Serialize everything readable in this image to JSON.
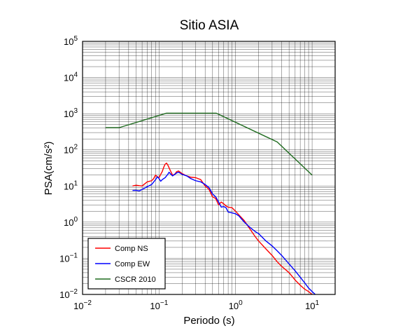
{
  "chart_data": {
    "type": "line",
    "title": "Sitio ASIA",
    "xlabel": "Periodo (s)",
    "ylabel": "PSA(cm/s²)",
    "xscale": "log",
    "yscale": "log",
    "xlim": [
      0.01,
      20
    ],
    "ylim": [
      0.01,
      100000
    ],
    "x_ticks": [
      {
        "base": "10",
        "exp": "−2"
      },
      {
        "base": "10",
        "exp": "−1"
      },
      {
        "base": "10",
        "exp": "0"
      },
      {
        "base": "10",
        "exp": "1"
      }
    ],
    "y_ticks": [
      {
        "base": "10",
        "exp": "−2"
      },
      {
        "base": "10",
        "exp": "−1"
      },
      {
        "base": "10",
        "exp": "0"
      },
      {
        "base": "10",
        "exp": "1"
      },
      {
        "base": "10",
        "exp": "2"
      },
      {
        "base": "10",
        "exp": "3"
      },
      {
        "base": "10",
        "exp": "4"
      },
      {
        "base": "10",
        "exp": "5"
      }
    ],
    "grid": true,
    "legend_position": "bottom-left",
    "series": [
      {
        "name": "Comp NS",
        "color": "#ff0000",
        "points": [
          [
            0.045,
            10.0
          ],
          [
            0.05,
            10.5
          ],
          [
            0.055,
            10.2
          ],
          [
            0.06,
            10.0
          ],
          [
            0.065,
            11.5
          ],
          [
            0.07,
            13.0
          ],
          [
            0.075,
            13.5
          ],
          [
            0.08,
            14.0
          ],
          [
            0.085,
            16.0
          ],
          [
            0.09,
            20.0
          ],
          [
            0.095,
            18.0
          ],
          [
            0.1,
            17.0
          ],
          [
            0.105,
            21.0
          ],
          [
            0.11,
            25.0
          ],
          [
            0.115,
            33.0
          ],
          [
            0.12,
            40.0
          ],
          [
            0.125,
            43.0
          ],
          [
            0.13,
            38.0
          ],
          [
            0.14,
            27.0
          ],
          [
            0.15,
            20.0
          ],
          [
            0.16,
            21.0
          ],
          [
            0.17,
            25.0
          ],
          [
            0.18,
            26.0
          ],
          [
            0.2,
            22.0
          ],
          [
            0.23,
            19.0
          ],
          [
            0.26,
            17.5
          ],
          [
            0.3,
            17.0
          ],
          [
            0.35,
            15.0
          ],
          [
            0.4,
            10.0
          ],
          [
            0.45,
            8.0
          ],
          [
            0.5,
            5.0
          ],
          [
            0.55,
            4.5
          ],
          [
            0.6,
            3.0
          ],
          [
            0.65,
            3.6
          ],
          [
            0.7,
            3.2
          ],
          [
            0.75,
            2.8
          ],
          [
            0.8,
            2.6
          ],
          [
            0.9,
            2.5
          ],
          [
            1.0,
            2.0
          ],
          [
            1.1,
            1.6
          ],
          [
            1.3,
            1.1
          ],
          [
            1.5,
            0.7
          ],
          [
            1.8,
            0.4
          ],
          [
            2.0,
            0.3
          ],
          [
            2.5,
            0.18
          ],
          [
            3.0,
            0.12
          ],
          [
            3.5,
            0.08
          ],
          [
            4.0,
            0.06
          ],
          [
            5.0,
            0.04
          ],
          [
            6.0,
            0.025
          ],
          [
            7.0,
            0.018
          ],
          [
            8.0,
            0.014
          ],
          [
            9.0,
            0.012
          ],
          [
            10.0,
            0.01
          ]
        ]
      },
      {
        "name": "Comp EW",
        "color": "#0000ff",
        "points": [
          [
            0.045,
            7.5
          ],
          [
            0.05,
            7.6
          ],
          [
            0.055,
            7.3
          ],
          [
            0.06,
            8.0
          ],
          [
            0.07,
            9.5
          ],
          [
            0.08,
            11.0
          ],
          [
            0.09,
            15.0
          ],
          [
            0.095,
            18.0
          ],
          [
            0.1,
            16.0
          ],
          [
            0.105,
            13.5
          ],
          [
            0.11,
            15.0
          ],
          [
            0.12,
            17.0
          ],
          [
            0.13,
            21.0
          ],
          [
            0.135,
            24.0
          ],
          [
            0.14,
            22.0
          ],
          [
            0.15,
            19.0
          ],
          [
            0.17,
            23.0
          ],
          [
            0.18,
            24.0
          ],
          [
            0.2,
            21.0
          ],
          [
            0.23,
            19.0
          ],
          [
            0.26,
            16.0
          ],
          [
            0.3,
            14.0
          ],
          [
            0.35,
            13.0
          ],
          [
            0.4,
            11.0
          ],
          [
            0.45,
            9.0
          ],
          [
            0.5,
            6.0
          ],
          [
            0.55,
            5.0
          ],
          [
            0.6,
            3.6
          ],
          [
            0.65,
            2.6
          ],
          [
            0.7,
            2.7
          ],
          [
            0.75,
            2.5
          ],
          [
            0.8,
            1.9
          ],
          [
            0.9,
            1.8
          ],
          [
            1.0,
            1.7
          ],
          [
            1.1,
            1.5
          ],
          [
            1.3,
            1.0
          ],
          [
            1.5,
            0.75
          ],
          [
            1.8,
            0.55
          ],
          [
            2.0,
            0.48
          ],
          [
            2.5,
            0.3
          ],
          [
            3.0,
            0.22
          ],
          [
            3.5,
            0.16
          ],
          [
            4.0,
            0.12
          ],
          [
            5.0,
            0.07
          ],
          [
            6.0,
            0.045
          ],
          [
            7.0,
            0.03
          ],
          [
            8.0,
            0.021
          ],
          [
            9.0,
            0.015
          ],
          [
            10.0,
            0.012
          ],
          [
            11.0,
            0.01
          ]
        ]
      },
      {
        "name": "CSCR 2010",
        "color": "#1f6b1f",
        "points": [
          [
            0.02,
            410
          ],
          [
            0.03,
            410
          ],
          [
            0.125,
            1030
          ],
          [
            0.56,
            1030
          ],
          [
            3.5,
            165
          ],
          [
            10.0,
            20
          ]
        ]
      }
    ]
  }
}
